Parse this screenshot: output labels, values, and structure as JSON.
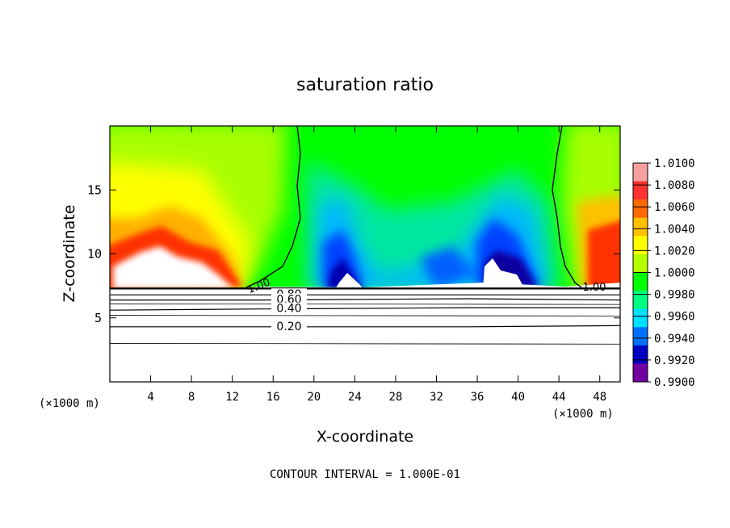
{
  "chart_data": {
    "type": "heatmap",
    "title": "saturation ratio",
    "xlabel": "X-coordinate",
    "ylabel": "Z-coordinate",
    "x_unit_left": "(×1000 m)",
    "x_unit_right": "(×1000 m)",
    "xlim": [
      0,
      50
    ],
    "ylim": [
      0,
      20
    ],
    "x_ticks": [
      4,
      8,
      12,
      16,
      20,
      24,
      28,
      32,
      36,
      40,
      44,
      48
    ],
    "y_ticks": [
      5,
      10,
      15
    ],
    "footer": "CONTOUR INTERVAL = 1.000E-01",
    "colorbar": {
      "labels": [
        "1.0100",
        "1.0080",
        "1.0060",
        "1.0040",
        "1.0020",
        "1.0000",
        "0.9980",
        "0.9960",
        "0.9940",
        "0.9920",
        "0.9900"
      ],
      "colors": [
        "#f8a0a0",
        "#ff3030",
        "#ff6a00",
        "#ffc000",
        "#ffff00",
        "#b4ff00",
        "#00ff00",
        "#00ff80",
        "#00e0ff",
        "#0070ff",
        "#0000c0",
        "#7000a0"
      ]
    },
    "contours": [
      {
        "label": "1.00",
        "z": [
          7.3,
          7.3,
          7.3,
          7.3
        ]
      },
      {
        "label": "0.80",
        "z": [
          6.8,
          6.8,
          6.8,
          6.8
        ]
      },
      {
        "label": "0.60",
        "z": [
          6.4,
          6.4,
          6.5,
          6.4
        ]
      },
      {
        "label": "0.40",
        "z": [
          5.6,
          5.7,
          5.8,
          5.8
        ]
      },
      {
        "label": "0.20",
        "z": [
          4.3,
          4.3,
          4.3,
          4.4
        ]
      }
    ],
    "contour_x": [
      0,
      15,
      35,
      50
    ],
    "vertical_contour_label": "1.00",
    "right_contour_label": "1.00"
  }
}
